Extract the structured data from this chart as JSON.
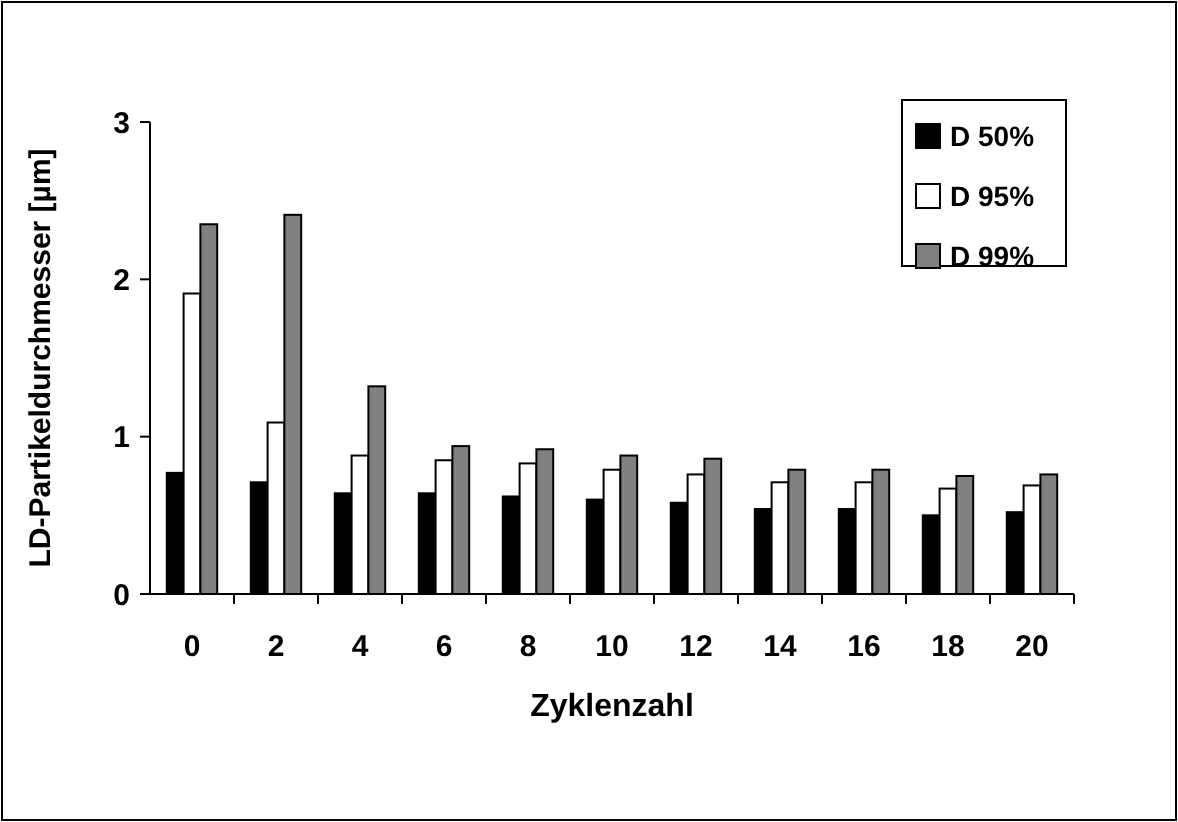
{
  "chart_data": {
    "type": "bar",
    "xlabel": "Zyklenzahl",
    "ylabel": "LD-Partikeldurchmesser [µm]",
    "categories": [
      "0",
      "2",
      "4",
      "6",
      "8",
      "10",
      "12",
      "14",
      "16",
      "18",
      "20"
    ],
    "series": [
      {
        "name": "D 50%",
        "color": "#000000",
        "values": [
          0.77,
          0.71,
          0.64,
          0.64,
          0.62,
          0.6,
          0.58,
          0.54,
          0.54,
          0.5,
          0.52
        ]
      },
      {
        "name": "D 95%",
        "color": "#ffffff",
        "values": [
          1.91,
          1.09,
          0.88,
          0.85,
          0.83,
          0.79,
          0.76,
          0.71,
          0.71,
          0.67,
          0.69
        ]
      },
      {
        "name": "D 99%",
        "color": "#808080",
        "values": [
          2.35,
          2.41,
          1.32,
          0.94,
          0.92,
          0.88,
          0.86,
          0.79,
          0.79,
          0.75,
          0.76
        ]
      }
    ],
    "ylim": [
      0,
      3
    ],
    "yticks": [
      0,
      1,
      2,
      3
    ],
    "grid": false,
    "legend": "top right"
  }
}
